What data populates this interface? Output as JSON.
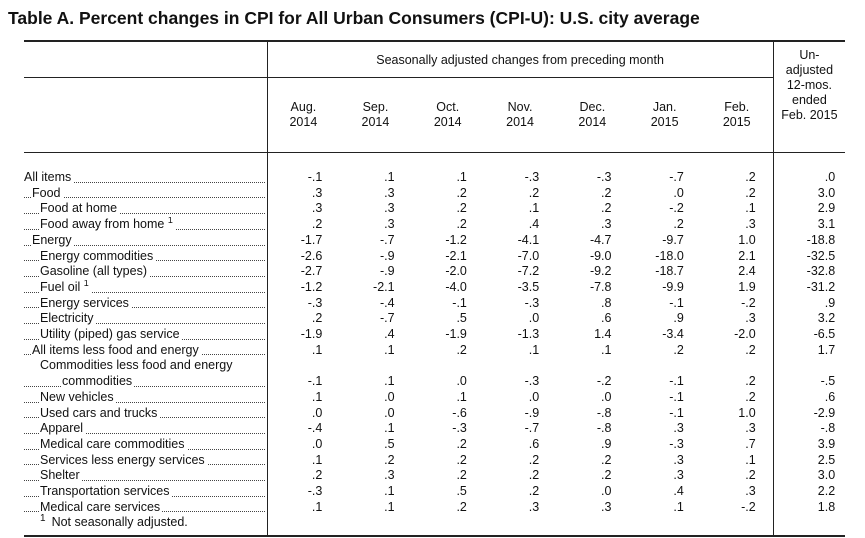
{
  "title": "Table A. Percent changes in CPI for All Urban Consumers (CPI-U): U.S. city average",
  "header": {
    "group": "Seasonally adjusted changes from preceding month",
    "unadjusted": [
      "Un-",
      "adjusted",
      "12-mos.",
      "ended",
      "Feb. 2015"
    ],
    "months": [
      [
        "Aug.",
        "2014"
      ],
      [
        "Sep.",
        "2014"
      ],
      [
        "Oct.",
        "2014"
      ],
      [
        "Nov.",
        "2014"
      ],
      [
        "Dec.",
        "2014"
      ],
      [
        "Jan.",
        "2015"
      ],
      [
        "Feb.",
        "2015"
      ]
    ]
  },
  "rows": [
    {
      "label": "All items",
      "indent": 0,
      "values": [
        "-.1",
        ".1",
        ".1",
        "-.3",
        "-.3",
        "-.7",
        ".2",
        ".0"
      ]
    },
    {
      "label": "Food",
      "indent": 1,
      "values": [
        ".3",
        ".3",
        ".2",
        ".2",
        ".2",
        ".0",
        ".2",
        "3.0"
      ]
    },
    {
      "label": "Food at home",
      "indent": 2,
      "values": [
        ".3",
        ".3",
        ".2",
        ".1",
        ".2",
        "-.2",
        ".1",
        "2.9"
      ]
    },
    {
      "label": "Food away from home",
      "indent": 2,
      "sup": "1",
      "values": [
        ".2",
        ".3",
        ".2",
        ".4",
        ".3",
        ".2",
        ".3",
        "3.1"
      ]
    },
    {
      "label": "Energy",
      "indent": 1,
      "values": [
        "-1.7",
        "-.7",
        "-1.2",
        "-4.1",
        "-4.7",
        "-9.7",
        "1.0",
        "-18.8"
      ]
    },
    {
      "label": "Energy commodities",
      "indent": 2,
      "values": [
        "-2.6",
        "-.9",
        "-2.1",
        "-7.0",
        "-9.0",
        "-18.0",
        "2.1",
        "-32.5"
      ]
    },
    {
      "label": "Gasoline (all types)",
      "indent": 3,
      "values": [
        "-2.7",
        "-.9",
        "-2.0",
        "-7.2",
        "-9.2",
        "-18.7",
        "2.4",
        "-32.8"
      ]
    },
    {
      "label": "Fuel oil",
      "indent": 3,
      "sup": "1",
      "values": [
        "-1.2",
        "-2.1",
        "-4.0",
        "-3.5",
        "-7.8",
        "-9.9",
        "1.9",
        "-31.2"
      ]
    },
    {
      "label": "Energy services",
      "indent": 2,
      "values": [
        "-.3",
        "-.4",
        "-.1",
        "-.3",
        ".8",
        "-.1",
        "-.2",
        ".9"
      ]
    },
    {
      "label": "Electricity",
      "indent": 3,
      "values": [
        ".2",
        "-.7",
        ".5",
        ".0",
        ".6",
        ".9",
        ".3",
        "3.2"
      ]
    },
    {
      "label": "Utility (piped) gas service",
      "indent": 3,
      "values": [
        "-1.9",
        ".4",
        "-1.9",
        "-1.3",
        "1.4",
        "-3.4",
        "-2.0",
        "-6.5"
      ]
    },
    {
      "label": "All items less food and energy",
      "indent": 1,
      "values": [
        ".1",
        ".1",
        ".2",
        ".1",
        ".1",
        ".2",
        ".2",
        "1.7"
      ]
    },
    {
      "label": "Commodities less food and energy",
      "indent": 2,
      "nodots": true,
      "values": [
        "",
        "",
        "",
        "",
        "",
        "",
        "",
        ""
      ]
    },
    {
      "label": "commodities",
      "indent": 4,
      "values": [
        "-.1",
        ".1",
        ".0",
        "-.3",
        "-.2",
        "-.1",
        ".2",
        "-.5"
      ]
    },
    {
      "label": "New vehicles",
      "indent": 3,
      "values": [
        ".1",
        ".0",
        ".1",
        ".0",
        ".0",
        "-.1",
        ".2",
        ".6"
      ]
    },
    {
      "label": "Used cars and trucks",
      "indent": 3,
      "values": [
        ".0",
        ".0",
        "-.6",
        "-.9",
        "-.8",
        "-.1",
        "1.0",
        "-2.9"
      ]
    },
    {
      "label": "Apparel",
      "indent": 3,
      "values": [
        "-.4",
        ".1",
        "-.3",
        "-.7",
        "-.8",
        ".3",
        ".3",
        "-.8"
      ]
    },
    {
      "label": "Medical care commodities",
      "indent": 3,
      "values": [
        ".0",
        ".5",
        ".2",
        ".6",
        ".9",
        "-.3",
        ".7",
        "3.9"
      ]
    },
    {
      "label": "Services less energy services",
      "indent": 2,
      "values": [
        ".1",
        ".2",
        ".2",
        ".2",
        ".2",
        ".3",
        ".1",
        "2.5"
      ]
    },
    {
      "label": "Shelter",
      "indent": 3,
      "values": [
        ".2",
        ".3",
        ".2",
        ".2",
        ".2",
        ".3",
        ".2",
        "3.0"
      ]
    },
    {
      "label": "Transportation services",
      "indent": 3,
      "values": [
        "-.3",
        ".1",
        ".5",
        ".2",
        ".0",
        ".4",
        ".3",
        "2.2"
      ]
    },
    {
      "label": "Medical care services",
      "indent": 3,
      "values": [
        ".1",
        ".1",
        ".2",
        ".3",
        ".3",
        ".1",
        "-.2",
        "1.8"
      ]
    }
  ],
  "footnote": {
    "marker": "1",
    "text": "Not seasonally adjusted."
  }
}
